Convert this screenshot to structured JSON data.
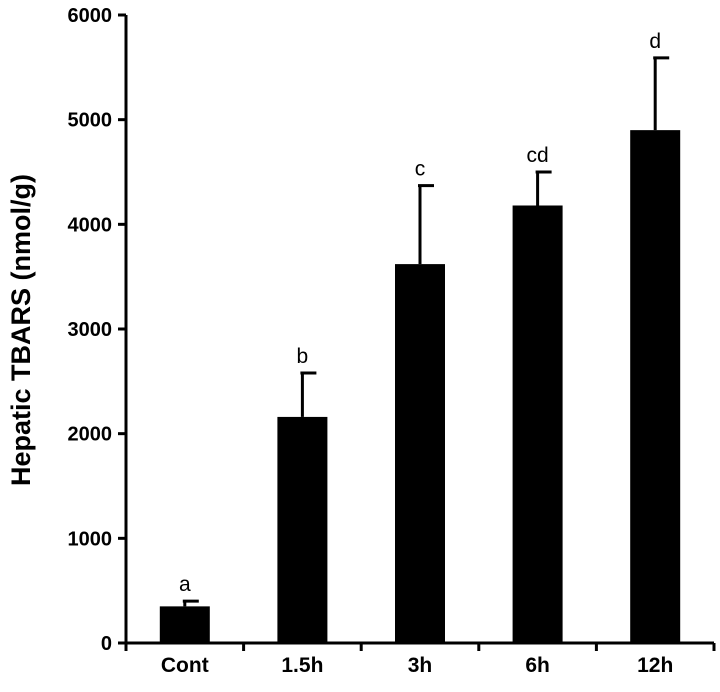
{
  "chart_data": {
    "type": "bar",
    "title": "",
    "xlabel": "",
    "ylabel": "Hepatic TBARS (nmol/g)",
    "ylim": [
      0,
      6000
    ],
    "yticks": [
      "0",
      "1000",
      "2000",
      "3000",
      "4000",
      "5000",
      "6000"
    ],
    "categories": [
      "Cont",
      "1.5h",
      "3h",
      "6h",
      "12h"
    ],
    "values": [
      350,
      2160,
      3620,
      4180,
      4900
    ],
    "errors": [
      50,
      420,
      750,
      320,
      690
    ],
    "significance_labels": [
      "a",
      "b",
      "c",
      "cd",
      "d"
    ],
    "grid": false,
    "bar_color": "#000000"
  }
}
